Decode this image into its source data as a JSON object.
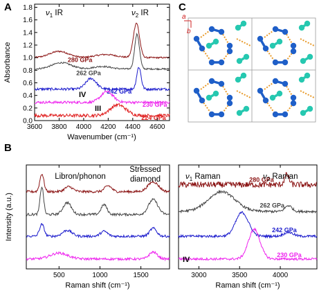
{
  "panel_letters": {
    "a": "A",
    "b": "B",
    "c": "C"
  },
  "panel_a": {
    "header_left": {
      "nu": "ν",
      "sub": "1",
      "rest": " IR"
    },
    "header_right": {
      "nu": "ν",
      "sub": "2",
      "rest": " IR"
    },
    "phase_iv": "IV",
    "phase_iii": "III"
  },
  "panel_b_left": {
    "annotation_libron": "Libron/phonon",
    "annotation_diamond_1": "Stressed",
    "annotation_diamond_2": "diamond"
  },
  "panel_b_right": {
    "header_left": {
      "nu": "ν",
      "sub": "1",
      "rest": " Raman"
    },
    "header_right": {
      "nu": "ν",
      "sub": "2",
      "rest": " Raman"
    },
    "phase_iv": "IV"
  },
  "panel_c": {
    "axis_a": "a",
    "axis_b": "b"
  },
  "colors": {
    "dark_red": "#8b1414",
    "dark_gray": "#444444",
    "blue": "#1a1acc",
    "magenta": "#ee22ee",
    "red": "#e02020",
    "sphere_blue": "#1f5fc8",
    "sphere_teal": "#26c8b0",
    "bond_orange": "#e89a2a"
  },
  "chart_data": [
    {
      "type": "line",
      "panel": "A",
      "xlabel": "Wavenumber (cm⁻¹)",
      "ylabel": "Absorbance",
      "xlim": [
        3600,
        4700
      ],
      "ylim": [
        0.0,
        1.85
      ],
      "x_ticks": [
        3600,
        3800,
        4000,
        4200,
        4400,
        4600
      ],
      "y_ticks": [
        0.0,
        0.2,
        0.4,
        0.6,
        0.8,
        1.0,
        1.2,
        1.4,
        1.6,
        1.8
      ],
      "series": [
        {
          "name": "280 GPa",
          "color": "#8b1414",
          "baseline": 1.0,
          "noise": 0.012,
          "peaks": [
            [
              3800,
              0.1,
              110
            ],
            [
              4430,
              0.55,
              35
            ],
            [
              4180,
              0.05,
              120
            ]
          ],
          "label_x": 3970,
          "label_y": 0.93
        },
        {
          "name": "262 GPa",
          "color": "#444444",
          "baseline": 0.82,
          "noise": 0.012,
          "peaks": [
            [
              3820,
              0.1,
              110
            ],
            [
              4435,
              0.55,
              28
            ],
            [
              4150,
              0.04,
              100
            ]
          ],
          "label_x": 4040,
          "label_y": 0.72
        },
        {
          "name": "242 GPa",
          "color": "#1a1acc",
          "baseline": 0.5,
          "noise": 0.02,
          "peaks": [
            [
              4060,
              0.17,
              60
            ],
            [
              4450,
              0.35,
              25
            ]
          ],
          "label_x": 4290,
          "label_y": 0.43
        },
        {
          "name": "230 GPa",
          "color": "#ee22ee",
          "baseline": 0.29,
          "noise": 0.02,
          "peaks": [
            [
              4190,
              0.17,
              70
            ],
            [
              3700,
              0.0,
              50
            ]
          ],
          "label_x": 4580,
          "label_y": 0.22
        },
        {
          "name": "224 GPa",
          "color": "#e02020",
          "baseline": 0.08,
          "noise": 0.025,
          "peaks": [
            [
              4280,
              0.17,
              90
            ]
          ],
          "label_x": 4570,
          "label_y": 0.01
        }
      ]
    },
    {
      "type": "line",
      "panel": "B-left",
      "xlabel": "Raman shift (cm⁻¹)",
      "ylabel": "Intensity (a.u.)",
      "xlim": [
        100,
        1850
      ],
      "x_ticks": [
        500,
        1000,
        1500
      ],
      "series": [
        {
          "name": "280 GPa",
          "color": "#8b1414",
          "baseline": 0.78,
          "noise": 0.012,
          "peaks": [
            [
              290,
              0.18,
              35
            ],
            [
              620,
              0.05,
              70
            ],
            [
              1100,
              0.06,
              60
            ],
            [
              1650,
              0.1,
              90
            ]
          ]
        },
        {
          "name": "262 GPa",
          "color": "#444444",
          "baseline": 0.55,
          "noise": 0.012,
          "peaks": [
            [
              290,
              0.28,
              30
            ],
            [
              600,
              0.12,
              70
            ],
            [
              1050,
              0.1,
              50
            ],
            [
              1650,
              0.15,
              80
            ]
          ]
        },
        {
          "name": "242 GPa",
          "color": "#1a1acc",
          "baseline": 0.33,
          "noise": 0.012,
          "peaks": [
            [
              290,
              0.12,
              40
            ],
            [
              600,
              0.06,
              80
            ],
            [
              1050,
              0.05,
              60
            ],
            [
              1650,
              0.08,
              60
            ]
          ]
        },
        {
          "name": "230 GPa",
          "color": "#ee22ee",
          "baseline": 0.1,
          "noise": 0.012,
          "peaks": [
            [
              500,
              0.06,
              150
            ],
            [
              1650,
              0.07,
              70
            ]
          ]
        }
      ]
    },
    {
      "type": "line",
      "panel": "B-right",
      "xlabel": "Raman shift (cm⁻¹)",
      "xlim": [
        2750,
        4450
      ],
      "x_ticks": [
        3000,
        3500,
        4000
      ],
      "series": [
        {
          "name": "280 GPa",
          "color": "#8b1414",
          "baseline": 0.85,
          "noise": 0.03,
          "peaks": [
            [
              4080,
              0.1,
              40
            ]
          ],
          "label_x": 3770,
          "label_y": 0.88
        },
        {
          "name": "262 GPa",
          "color": "#444444",
          "baseline": 0.58,
          "noise": 0.012,
          "peaks": [
            [
              3280,
              0.2,
              230
            ],
            [
              4100,
              0.06,
              60
            ]
          ],
          "label_x": 3900,
          "label_y": 0.62
        },
        {
          "name": "242 GPa",
          "color": "#1a1acc",
          "baseline": 0.33,
          "noise": 0.012,
          "peaks": [
            [
              3530,
              0.24,
              110
            ],
            [
              4100,
              0.04,
              80
            ]
          ],
          "label_x": 4050,
          "label_y": 0.37
        },
        {
          "name": "230 GPa",
          "color": "#ee22ee",
          "baseline": 0.1,
          "noise": 0.012,
          "peaks": [
            [
              3680,
              0.3,
              100
            ]
          ],
          "label_x": 4110,
          "label_y": 0.12
        }
      ]
    }
  ]
}
